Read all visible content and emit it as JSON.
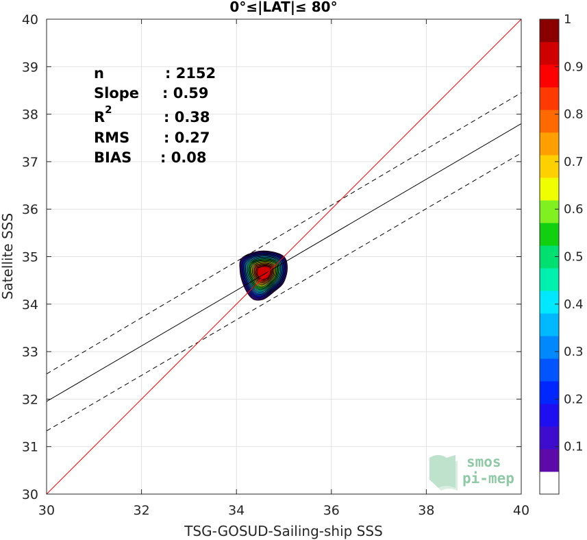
{
  "chart_data": {
    "type": "scatter",
    "subtype": "density-contour",
    "title": "0°≤|LAT|≤ 80°",
    "xlabel": "TSG-GOSUD-Sailing-ship SSS",
    "ylabel": "Satellite SSS",
    "xlim": [
      30,
      40
    ],
    "ylim": [
      30,
      40
    ],
    "xticks": [
      30,
      32,
      34,
      36,
      38,
      40
    ],
    "yticks": [
      30,
      31,
      32,
      33,
      34,
      35,
      36,
      37,
      38,
      39,
      40
    ],
    "grid": true,
    "stats": [
      {
        "label": "n",
        "value": ": 2152"
      },
      {
        "label": "Slope",
        "value": ": 0.59"
      },
      {
        "label": "R",
        "sup": "2",
        "value": ": 0.38"
      },
      {
        "label": "RMS",
        "value": ": 0.27"
      },
      {
        "label": "BIAS",
        "value": ": 0.08"
      }
    ],
    "lines": {
      "identity": {
        "x": [
          30,
          40
        ],
        "y": [
          30,
          40
        ],
        "color": "#ff0000"
      },
      "fit": {
        "x": [
          30,
          40
        ],
        "y": [
          31.95,
          37.8
        ],
        "color": "#000000"
      },
      "fit_upper": {
        "x": [
          30,
          40
        ],
        "y": [
          32.53,
          38.45
        ],
        "color": "#000000"
      },
      "fit_lower": {
        "x": [
          30,
          40
        ],
        "y": [
          31.33,
          37.18
        ],
        "color": "#000000"
      }
    },
    "density": {
      "center": [
        34.58,
        34.67
      ],
      "levels": [
        0.05,
        0.1,
        0.15,
        0.2,
        0.25,
        0.3,
        0.35,
        0.4,
        0.45,
        0.5,
        0.55,
        0.6,
        0.65,
        0.7,
        0.75,
        0.8,
        0.85,
        0.9,
        0.95
      ]
    },
    "colorbar": {
      "range": [
        0,
        1
      ],
      "ticks": [
        "0.1",
        "0.2",
        "0.3",
        "0.4",
        "0.5",
        "0.6",
        "0.7",
        "0.8",
        "0.9",
        "1"
      ],
      "colors": [
        "#ffffff",
        "#5c0aa8",
        "#3e0ccc",
        "#1f0ff0",
        "#0027ff",
        "#0055ff",
        "#0088ff",
        "#00b8ff",
        "#00e8ff",
        "#00f0b0",
        "#00e070",
        "#10d010",
        "#80f020",
        "#f0ff00",
        "#ffd000",
        "#ffa000",
        "#ff6a00",
        "#ff3a00",
        "#ff0000",
        "#d00000",
        "#8a0000"
      ]
    }
  },
  "logo": {
    "line1": "smos",
    "line2": "pi-mep"
  }
}
